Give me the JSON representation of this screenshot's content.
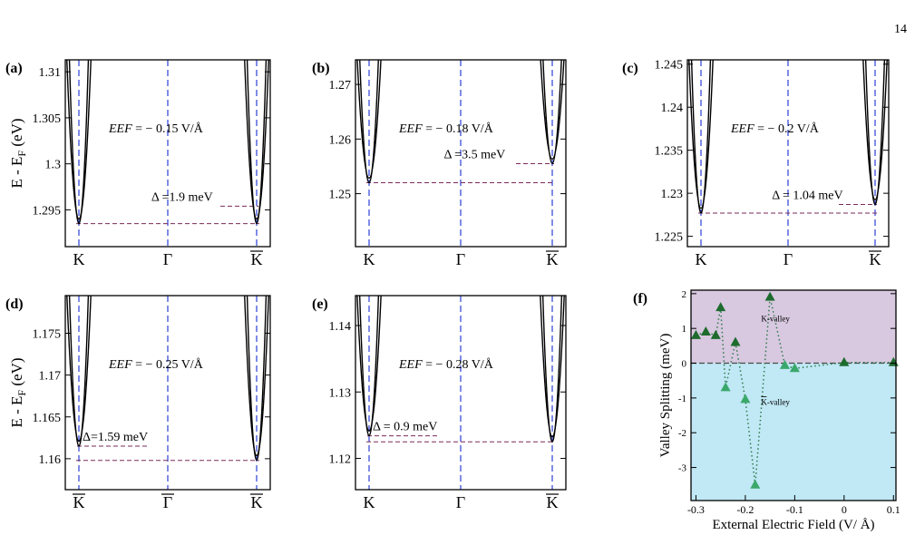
{
  "page_number": "14",
  "chart_data": [
    {
      "type": "line",
      "panel_label": "(a)",
      "ylabel": "E - E",
      "ylabel_sub": "F",
      "ylabel_unit": "(eV)",
      "ylim": [
        1.291,
        1.3113
      ],
      "yticks": [
        "1.295",
        "1.3",
        "1.305",
        "1.31"
      ],
      "yticks_vals": [
        1.295,
        1.3,
        1.305,
        1.31
      ],
      "xticks": [
        "K",
        "Γ",
        "K"
      ],
      "xtick_overline": [
        false,
        false,
        true
      ],
      "annotation_eef": "EEF",
      "annotation_value": "= − 0.15 V/Å",
      "delta_label": "Δ =1.9 meV",
      "K_min": 1.2935,
      "Kbar_min": 1.2935,
      "K_band_bottom": 1.2985,
      "K_band_top_branch": 1.3,
      "splitting_levels": [
        1.2954,
        1.2935
      ]
    },
    {
      "type": "line",
      "panel_label": "(b)",
      "ylim": [
        1.2403,
        1.2745
      ],
      "yticks": [
        "1.25",
        "1.26",
        "1.27"
      ],
      "yticks_vals": [
        1.25,
        1.26,
        1.27
      ],
      "xticks": [
        "K",
        "Γ",
        "K"
      ],
      "xtick_overline": [
        false,
        false,
        true
      ],
      "annotation_eef": "EEF",
      "annotation_value": "= − 0.18 V/Å",
      "delta_label": "Δ =3.5 meV",
      "K_min": 1.252,
      "Kbar_min": 1.2555,
      "splitting_levels": [
        1.2555,
        1.252
      ]
    },
    {
      "type": "line",
      "panel_label": "(c)",
      "ylim": [
        1.2238,
        1.2455
      ],
      "yticks": [
        "1.225",
        "1.23",
        "1.235",
        "1.24",
        "1.245"
      ],
      "yticks_vals": [
        1.225,
        1.23,
        1.235,
        1.24,
        1.245
      ],
      "xticks": [
        "K",
        "Γ",
        "K"
      ],
      "xtick_overline": [
        false,
        false,
        true
      ],
      "annotation_eef": "EEF",
      "annotation_value": "= − 0.2 V/Å",
      "delta_label": "Δ = 1.04 meV",
      "K_min": 1.2277,
      "Kbar_min": 1.2287,
      "splitting_levels": [
        1.2287,
        1.2277
      ]
    },
    {
      "type": "line",
      "panel_label": "(d)",
      "ylabel": "E - E",
      "ylabel_sub": "F",
      "ylabel_unit": "(eV)",
      "ylim": [
        1.1563,
        1.1795
      ],
      "yticks": [
        "1.16",
        "1.165",
        "1.17",
        "1.175"
      ],
      "yticks_vals": [
        1.16,
        1.165,
        1.17,
        1.175
      ],
      "xticks": [
        "K",
        "Γ",
        "K"
      ],
      "xtick_overline": [
        true,
        true,
        true
      ],
      "annotation_eef": "EEF",
      "annotation_value": "= − 0.25 V/Å",
      "delta_label": "Δ=1.59 meV",
      "K_min": 1.1615,
      "Kbar_min": 1.1598,
      "splitting_levels": [
        1.1615,
        1.1598
      ]
    },
    {
      "type": "line",
      "panel_label": "(e)",
      "ylim": [
        1.1153,
        1.1445
      ],
      "yticks": [
        "1.12",
        "1.13",
        "1.14"
      ],
      "yticks_vals": [
        1.12,
        1.13,
        1.14
      ],
      "xticks": [
        "K",
        "Γ",
        "K"
      ],
      "xtick_overline": [
        false,
        false,
        true
      ],
      "annotation_eef": "EEF",
      "annotation_value": "= − 0.28 V/Å",
      "delta_label": "Δ = 0.9 meV",
      "K_min": 1.1234,
      "Kbar_min": 1.1225,
      "splitting_levels": [
        1.1234,
        1.1225
      ]
    },
    {
      "type": "scatter",
      "panel_label": "(f)",
      "xlabel": "External Electric Field (V/ Å)",
      "ylabel": "Valley Splitting (meV)",
      "xlim": [
        -0.31,
        0.105
      ],
      "ylim": [
        -3.95,
        2.1
      ],
      "xticks": [
        "-0.3",
        "-0.2",
        "-0.1",
        "0",
        "0.1"
      ],
      "xticks_vals": [
        -0.3,
        -0.2,
        -0.1,
        0,
        0.1
      ],
      "yticks": [
        "-3",
        "-2",
        "-1",
        "0",
        "1",
        "2"
      ],
      "yticks_vals": [
        -3,
        -2,
        -1,
        0,
        1,
        2
      ],
      "region_labels": [
        "K-valley",
        "K-valley"
      ],
      "region_overline": [
        false,
        true
      ],
      "region_colors": [
        "#d8c8e0",
        "#c0e8f5"
      ],
      "marker_colors": [
        "#1e6b2e",
        "#3aa86b"
      ],
      "x": [
        -0.3,
        -0.28,
        -0.26,
        -0.25,
        -0.24,
        -0.22,
        -0.2,
        -0.18,
        -0.15,
        -0.12,
        -0.1,
        0,
        0.1
      ],
      "y": [
        0.8,
        0.9,
        0.8,
        1.6,
        -0.7,
        0.6,
        -1.04,
        -3.5,
        1.9,
        -0.06,
        -0.15,
        0.02,
        0.02
      ]
    }
  ]
}
